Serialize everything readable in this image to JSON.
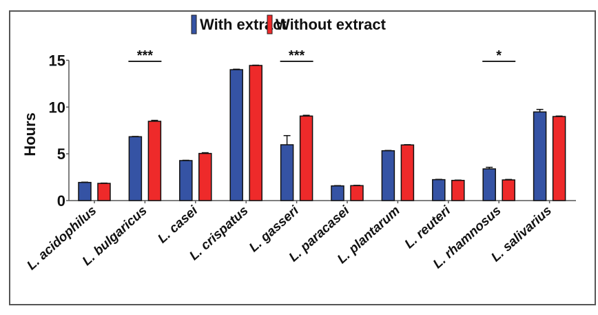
{
  "chart_data": {
    "type": "bar",
    "title": "",
    "xlabel": "",
    "ylabel": "Hours",
    "ylim": [
      0,
      15
    ],
    "yticks": [
      0,
      5,
      10,
      15
    ],
    "grid": false,
    "legend_position": "top-right",
    "categories": [
      "L. acidophilus",
      "L. bulgaricus",
      "L. casei",
      "L. crispatus",
      "L. gasseri",
      "L. paracasei",
      "L. plantarum",
      "L. reuteri",
      "L. rhamnosus",
      "L. salivarius"
    ],
    "series": [
      {
        "name": "With extract",
        "color": "#3553a4",
        "values": [
          1.94,
          6.83,
          4.28,
          14.0,
          5.97,
          1.57,
          5.33,
          2.24,
          3.39,
          9.48
        ],
        "errors": [
          0.03,
          0.03,
          0.03,
          0.05,
          0.98,
          0.03,
          0.03,
          0.03,
          0.17,
          0.27
        ]
      },
      {
        "name": "Without extract",
        "color": "#ee2a2a",
        "values": [
          1.84,
          8.48,
          5.04,
          14.45,
          9.04,
          1.6,
          5.95,
          2.16,
          2.21,
          8.99
        ],
        "errors": [
          0.03,
          0.1,
          0.08,
          0.03,
          0.08,
          0.03,
          0.03,
          0.03,
          0.05,
          0.05
        ]
      }
    ],
    "annotations": [
      {
        "category": "L. bulgaricus",
        "text": "***"
      },
      {
        "category": "L. gasseri",
        "text": "***"
      },
      {
        "category": "L. rhamnosus",
        "text": "*"
      }
    ]
  }
}
